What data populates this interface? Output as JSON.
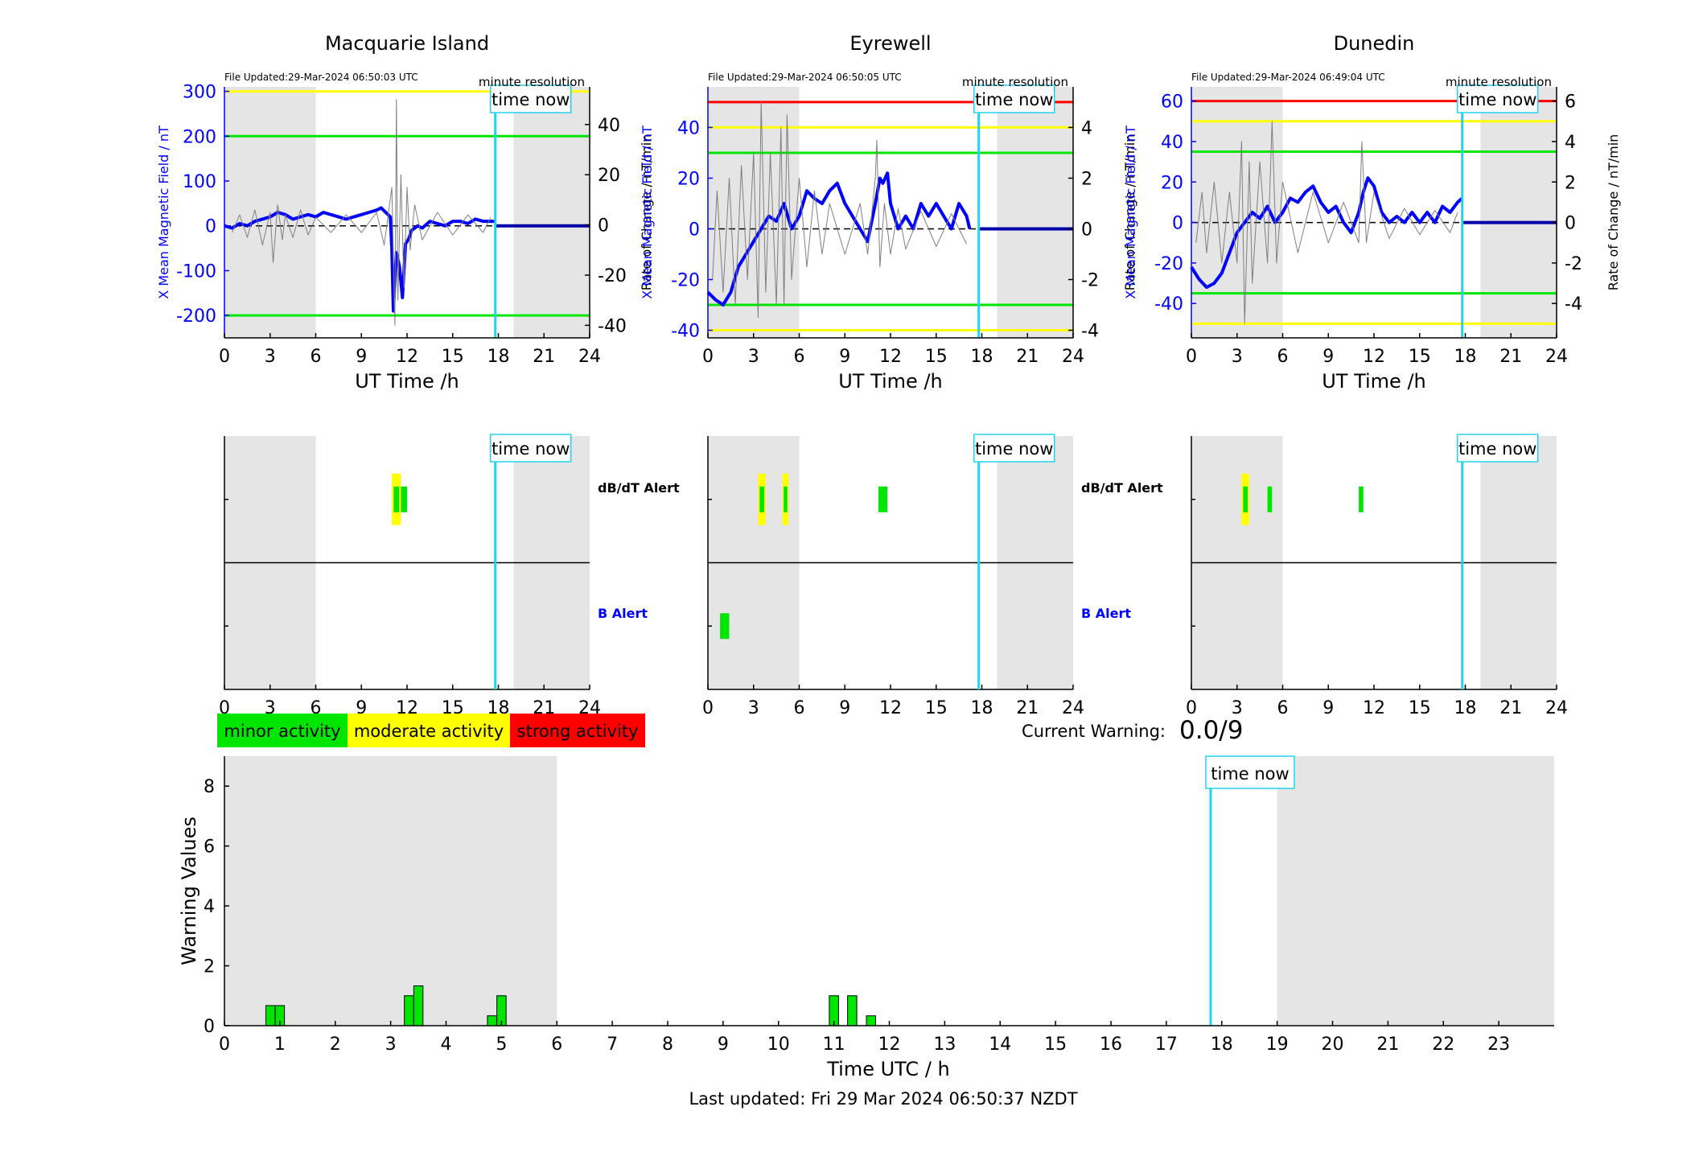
{
  "page": {
    "last_updated": "Last updated: Fri 29 Mar 2024 06:50:37 NZDT"
  },
  "common": {
    "x_ticks": [
      "0",
      "3",
      "6",
      "9",
      "12",
      "15",
      "18",
      "21",
      "24"
    ],
    "x_label": "UT Time /h",
    "time_now_label": "time now",
    "minute_resolution": "minute resolution",
    "left_axis_label": "X Mean Magnetic Field / nT",
    "right_axis_label": "Rate of Change / nT/min",
    "dbdt_alert_label": "dB/dT Alert",
    "b_alert_label": "B Alert",
    "time_now_hour": 17.8,
    "shade_ranges": [
      [
        0,
        6
      ],
      [
        19,
        24
      ]
    ]
  },
  "legend": {
    "minor": "minor activity",
    "moderate": "moderate activity",
    "strong": "strong activity",
    "colors": {
      "minor": "#00e600",
      "moderate": "#ffff00",
      "strong": "#ff0000"
    }
  },
  "current_warning": {
    "label": "Current Warning:",
    "value": "0.0/9"
  },
  "stations": [
    {
      "name": "Macquarie Island",
      "file_updated": "File Updated:29-Mar-2024 06:50:03 UTC",
      "left_ticks": [
        "-200",
        "-100",
        "0",
        "100",
        "200",
        "300"
      ],
      "right_ticks": [
        "-40",
        "-20",
        "0",
        "20",
        "40"
      ],
      "dbdt_alerts": [
        {
          "start": 11.0,
          "end": 11.6,
          "level": "moderate"
        },
        {
          "start": 11.6,
          "end": 12.0,
          "level": "minor"
        }
      ],
      "b_alerts": []
    },
    {
      "name": "Eyrewell",
      "file_updated": "File Updated:29-Mar-2024 06:50:05 UTC",
      "left_ticks": [
        "-40",
        "-20",
        "0",
        "20",
        "40"
      ],
      "right_ticks": [
        "-4",
        "-2",
        "0",
        "2",
        "4"
      ],
      "dbdt_alerts": [
        {
          "start": 3.3,
          "end": 3.8,
          "level": "moderate"
        },
        {
          "start": 4.9,
          "end": 5.3,
          "level": "moderate"
        },
        {
          "start": 11.2,
          "end": 11.8,
          "level": "minor"
        }
      ],
      "b_alerts": [
        {
          "start": 0.8,
          "end": 1.4,
          "level": "minor"
        }
      ]
    },
    {
      "name": "Dunedin",
      "file_updated": "File Updated:29-Mar-2024 06:49:04 UTC",
      "left_ticks": [
        "-40",
        "-20",
        "0",
        "20",
        "40",
        "60"
      ],
      "right_ticks": [
        "-4",
        "-2",
        "0",
        "2",
        "4",
        "6"
      ],
      "dbdt_alerts": [
        {
          "start": 3.3,
          "end": 3.8,
          "level": "moderate"
        },
        {
          "start": 5.0,
          "end": 5.3,
          "level": "minor"
        },
        {
          "start": 11.0,
          "end": 11.3,
          "level": "minor"
        }
      ],
      "b_alerts": []
    }
  ],
  "chart_data": [
    {
      "type": "line",
      "title": "Macquarie Island",
      "xlabel": "UT Time /h",
      "ylabel": "X Mean Magnetic Field / nT",
      "y2label": "Rate of Change / nT/min",
      "xlim": [
        0,
        24
      ],
      "ylim": [
        -250,
        310
      ],
      "y2lim": [
        -45,
        55
      ],
      "threshold_lines": [
        {
          "y": 300,
          "color": "#ffff00"
        },
        {
          "y": 200,
          "color": "#00e600"
        },
        {
          "y": -200,
          "color": "#00e600"
        }
      ],
      "series": [
        {
          "name": "X Mean Magnetic Field",
          "axis": "left",
          "color": "#0000ff",
          "x": [
            0,
            0.5,
            1,
            1.5,
            2,
            2.5,
            3,
            3.5,
            4,
            4.5,
            5,
            5.5,
            6,
            6.5,
            7,
            7.5,
            8,
            8.5,
            9,
            9.5,
            10,
            10.3,
            10.6,
            10.9,
            11.0,
            11.1,
            11.2,
            11.3,
            11.5,
            11.7,
            11.9,
            12.1,
            12.3,
            12.5,
            12.7,
            13,
            13.5,
            14,
            14.5,
            15,
            15.5,
            16,
            16.5,
            17,
            17.5,
            17.8
          ],
          "y": [
            0,
            -5,
            5,
            0,
            10,
            15,
            20,
            30,
            25,
            15,
            20,
            25,
            20,
            30,
            25,
            20,
            15,
            20,
            25,
            30,
            35,
            40,
            30,
            20,
            -50,
            -190,
            -120,
            -60,
            -90,
            -160,
            -40,
            -30,
            -10,
            -5,
            0,
            -5,
            10,
            5,
            0,
            10,
            10,
            5,
            15,
            10,
            10,
            10
          ]
        },
        {
          "name": "X Mean Magnetic Field (future)",
          "axis": "left",
          "color": "#0000aa",
          "x": [
            17.8,
            24
          ],
          "y": [
            0,
            0
          ]
        },
        {
          "name": "Rate of Change",
          "axis": "right",
          "color": "#7f7f7f",
          "x": [
            0.5,
            1,
            1.5,
            2,
            2.5,
            3,
            3.2,
            3.5,
            3.8,
            4,
            4.5,
            5,
            5.5,
            6,
            7,
            8,
            9,
            10,
            10.5,
            11,
            11.2,
            11.3,
            11.4,
            11.6,
            11.8,
            12,
            12.2,
            12.5,
            13,
            14,
            15,
            16,
            17,
            17.5
          ],
          "y": [
            -3,
            4,
            -5,
            6,
            -8,
            5,
            -15,
            8,
            -6,
            4,
            -5,
            6,
            -4,
            3,
            -3,
            4,
            -3,
            5,
            -8,
            15,
            -40,
            50,
            -30,
            20,
            -25,
            15,
            -10,
            8,
            -6,
            5,
            -4,
            4,
            -3,
            3
          ]
        }
      ]
    },
    {
      "type": "line",
      "title": "Eyrewell",
      "xlabel": "UT Time /h",
      "ylabel": "X Mean Magnetic Field / nT",
      "y2label": "Rate of Change / nT/min",
      "xlim": [
        0,
        24
      ],
      "ylim": [
        -43,
        56
      ],
      "y2lim": [
        -4.3,
        5.6
      ],
      "threshold_lines": [
        {
          "y": 50,
          "color": "#ff0000"
        },
        {
          "y": 40,
          "color": "#ffff00"
        },
        {
          "y": 30,
          "color": "#00e600"
        },
        {
          "y": -30,
          "color": "#00e600"
        },
        {
          "y": -40,
          "color": "#ffff00"
        }
      ],
      "series": [
        {
          "name": "X Mean Magnetic Field",
          "axis": "left",
          "color": "#0000ff",
          "x": [
            0,
            0.5,
            1,
            1.5,
            2,
            2.5,
            3,
            3.5,
            4,
            4.5,
            5,
            5.5,
            6,
            6.5,
            7,
            7.5,
            8,
            8.5,
            9,
            9.5,
            10,
            10.5,
            11,
            11.3,
            11.5,
            11.8,
            12,
            12.5,
            13,
            13.5,
            14,
            14.5,
            15,
            15.5,
            16,
            16.5,
            17,
            17.2
          ],
          "y": [
            -25,
            -28,
            -30,
            -25,
            -15,
            -10,
            -5,
            0,
            5,
            3,
            10,
            0,
            5,
            15,
            12,
            10,
            15,
            18,
            10,
            5,
            0,
            -5,
            10,
            20,
            18,
            22,
            10,
            0,
            5,
            0,
            10,
            5,
            10,
            5,
            0,
            10,
            5,
            0
          ]
        },
        {
          "name": "X Mean Magnetic Field (future)",
          "axis": "left",
          "color": "#0000aa",
          "x": [
            17.8,
            24
          ],
          "y": [
            0,
            0
          ]
        },
        {
          "name": "Rate of Change",
          "axis": "right",
          "color": "#7f7f7f",
          "x": [
            0.3,
            0.6,
            1,
            1.4,
            1.8,
            2.2,
            2.6,
            3,
            3.3,
            3.5,
            3.8,
            4.1,
            4.5,
            4.8,
            5,
            5.2,
            5.5,
            6,
            6.5,
            7,
            7.5,
            8,
            9,
            10,
            10.5,
            11,
            11.1,
            11.3,
            11.6,
            12,
            12.5,
            13,
            14,
            15,
            16,
            17
          ],
          "y": [
            -2,
            1.5,
            -2.5,
            2,
            -3,
            2.5,
            -2,
            3,
            -3.5,
            5,
            -2.5,
            3,
            -3,
            4,
            -3,
            4.5,
            -2,
            2,
            -1.5,
            1.5,
            -1,
            1,
            -1,
            1,
            -1,
            2,
            3.5,
            -1.5,
            1,
            -1,
            0.8,
            -0.8,
            0.7,
            -0.7,
            0.6,
            -0.6
          ]
        }
      ]
    },
    {
      "type": "line",
      "title": "Dunedin",
      "xlabel": "UT Time /h",
      "ylabel": "X Mean Magnetic Field / nT",
      "y2label": "Rate of Change / nT/min",
      "xlim": [
        0,
        24
      ],
      "ylim": [
        -57,
        67
      ],
      "y2lim": [
        -5.7,
        6.7
      ],
      "threshold_lines": [
        {
          "y": 60,
          "color": "#ff0000"
        },
        {
          "y": 50,
          "color": "#ffff00"
        },
        {
          "y": 35,
          "color": "#00e600"
        },
        {
          "y": -35,
          "color": "#00e600"
        },
        {
          "y": -50,
          "color": "#ffff00"
        }
      ],
      "series": [
        {
          "name": "X Mean Magnetic Field",
          "axis": "left",
          "color": "#0000ff",
          "x": [
            0,
            0.5,
            1,
            1.5,
            2,
            2.5,
            3,
            3.5,
            4,
            4.5,
            5,
            5.5,
            6,
            6.5,
            7,
            7.5,
            8,
            8.5,
            9,
            9.5,
            10,
            10.5,
            11,
            11.3,
            11.6,
            12,
            12.5,
            13,
            13.5,
            14,
            14.5,
            15,
            15.5,
            16,
            16.5,
            17,
            17.5,
            17.8
          ],
          "y": [
            -22,
            -28,
            -32,
            -30,
            -25,
            -15,
            -5,
            0,
            5,
            2,
            8,
            0,
            5,
            12,
            10,
            15,
            18,
            10,
            5,
            8,
            0,
            -5,
            5,
            15,
            22,
            18,
            5,
            0,
            3,
            0,
            5,
            0,
            5,
            0,
            8,
            5,
            10,
            12
          ]
        },
        {
          "name": "X Mean Magnetic Field (future)",
          "axis": "left",
          "color": "#0000aa",
          "x": [
            17.8,
            24
          ],
          "y": [
            0,
            0
          ]
        },
        {
          "name": "Rate of Change",
          "axis": "right",
          "color": "#7f7f7f",
          "x": [
            0.3,
            0.7,
            1,
            1.5,
            2,
            2.5,
            3,
            3.3,
            3.5,
            3.8,
            4,
            4.5,
            5,
            5.3,
            5.6,
            6,
            7,
            8,
            9,
            10,
            11,
            11.2,
            11.5,
            12,
            13,
            14,
            15,
            16,
            17,
            17.5
          ],
          "y": [
            -1,
            1.5,
            -1.5,
            2,
            -2,
            1.5,
            -2,
            4,
            -5,
            3,
            -3,
            3,
            -2,
            5,
            -2,
            2,
            -1.5,
            1.5,
            -1,
            1,
            -1,
            4,
            -1,
            1.5,
            -0.8,
            0.7,
            -0.6,
            0.6,
            -0.5,
            0.5
          ]
        }
      ]
    },
    {
      "type": "bar",
      "title": "",
      "xlabel": "Time UTC / h",
      "ylabel": "Warning Values",
      "xlim": [
        0,
        24
      ],
      "ylim": [
        0,
        9
      ],
      "x_ticks": [
        "0",
        "1",
        "2",
        "3",
        "4",
        "5",
        "6",
        "7",
        "8",
        "9",
        "10",
        "11",
        "12",
        "13",
        "14",
        "15",
        "16",
        "17",
        "18",
        "19",
        "20",
        "21",
        "22",
        "23"
      ],
      "y_ticks": [
        "0",
        "2",
        "4",
        "6",
        "8"
      ],
      "series": [
        {
          "name": "Warning Values",
          "color": "#00e600",
          "x": [
            0.83,
            1.0,
            3.33,
            3.5,
            4.83,
            5.0,
            11.0,
            11.33,
            11.67
          ],
          "y": [
            0.67,
            0.67,
            1.0,
            1.33,
            0.33,
            1.0,
            1.0,
            1.0,
            0.33
          ]
        }
      ]
    }
  ]
}
